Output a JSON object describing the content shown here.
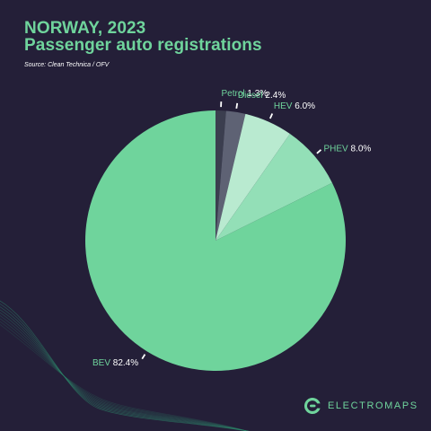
{
  "header": {
    "title_line1": "NORWAY, 2023",
    "title_line2": "Passenger auto registrations",
    "source": "Source: Clean Technica / OFV"
  },
  "brand": {
    "name": "ELECTROMAPS",
    "icon": "electromaps-logo-icon"
  },
  "colors": {
    "background": "#241f38",
    "accent": "#6fd49c",
    "wave": "#2e8a6c"
  },
  "chart_data": {
    "type": "pie",
    "title": "NORWAY, 2023",
    "subtitle": "Passenger auto registrations",
    "unit": "%",
    "slices": [
      {
        "label": "Petrol",
        "value": 1.3,
        "value_label": "1.3%",
        "color": "#3b3e4f"
      },
      {
        "label": "Diesel",
        "value": 2.4,
        "value_label": "2.4%",
        "color": "#5e6274"
      },
      {
        "label": "HEV",
        "value": 6.0,
        "value_label": "6.0%",
        "color": "#b9ead0"
      },
      {
        "label": "PHEV",
        "value": 8.0,
        "value_label": "8.0%",
        "color": "#93dfb7"
      },
      {
        "label": "BEV",
        "value": 82.4,
        "value_label": "82.4%",
        "color": "#6fd49c"
      }
    ]
  }
}
